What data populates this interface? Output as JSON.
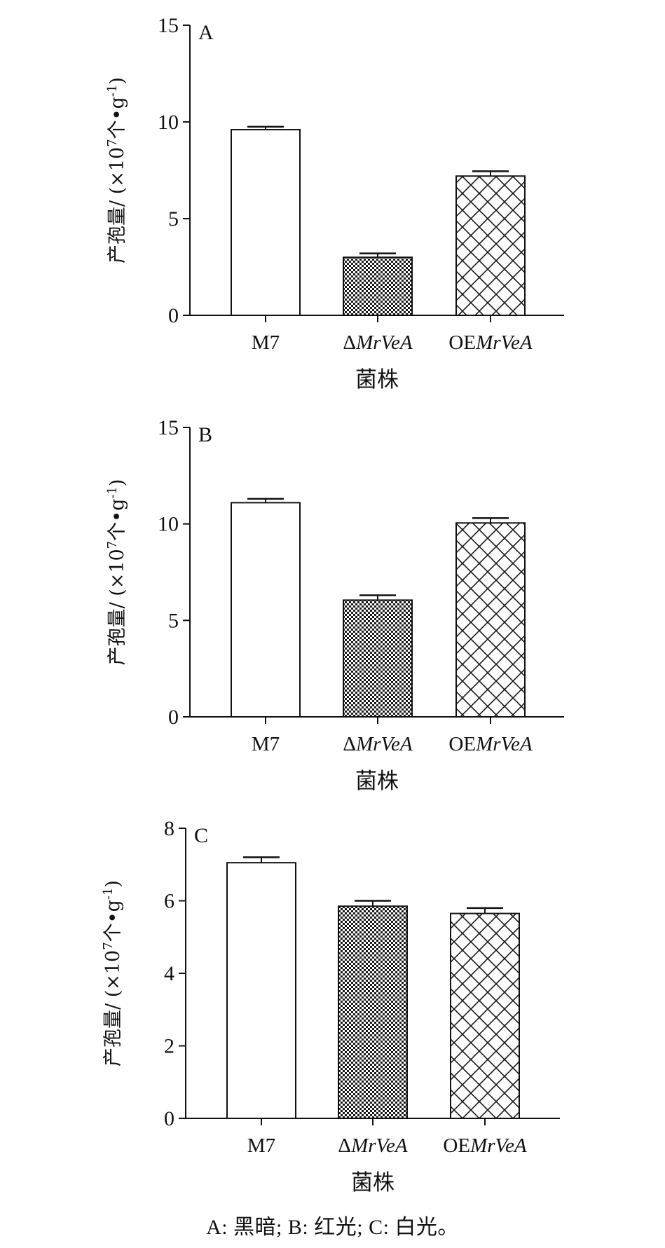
{
  "chart_data": [
    {
      "type": "bar",
      "panel_label": "A",
      "categories": [
        "M7",
        "ΔMrVeA",
        "OEMrVeA"
      ],
      "values": [
        9.6,
        3.0,
        7.2
      ],
      "errors": [
        0.15,
        0.2,
        0.25
      ],
      "patterns": [
        "none",
        "dense-check",
        "crosshatch"
      ],
      "xlabel": "菌株",
      "ylabel": "产孢量/ (×10⁷个•g⁻¹)",
      "ylim": [
        0,
        15
      ],
      "yticks": [
        0,
        5,
        10,
        15
      ],
      "grid": false,
      "legend": "none"
    },
    {
      "type": "bar",
      "panel_label": "B",
      "categories": [
        "M7",
        "ΔMrVeA",
        "OEMrVeA"
      ],
      "values": [
        11.1,
        6.05,
        10.05
      ],
      "errors": [
        0.2,
        0.25,
        0.25
      ],
      "patterns": [
        "none",
        "dense-check",
        "crosshatch"
      ],
      "xlabel": "菌株",
      "ylabel": "产孢量/ (×10⁷个•g⁻¹)",
      "ylim": [
        0,
        15
      ],
      "yticks": [
        0,
        5,
        10,
        15
      ],
      "grid": false,
      "legend": "none"
    },
    {
      "type": "bar",
      "panel_label": "C",
      "categories": [
        "M7",
        "ΔMrVeA",
        "OEMrVeA"
      ],
      "values": [
        7.05,
        5.85,
        5.65
      ],
      "errors": [
        0.15,
        0.15,
        0.15
      ],
      "patterns": [
        "none",
        "dense-check",
        "crosshatch"
      ],
      "xlabel": "菌株",
      "ylabel": "产孢量/ (×10⁷个•g⁻¹)",
      "ylim": [
        0,
        8
      ],
      "yticks": [
        0,
        2,
        4,
        6,
        8
      ],
      "grid": false,
      "legend": "none"
    }
  ],
  "caption": "A: 黑暗; B: 红光; C: 白光。",
  "colors": {
    "ink": "#111111",
    "bar_fill": "#ffffff",
    "pattern_dark": "#1a1a1a"
  }
}
